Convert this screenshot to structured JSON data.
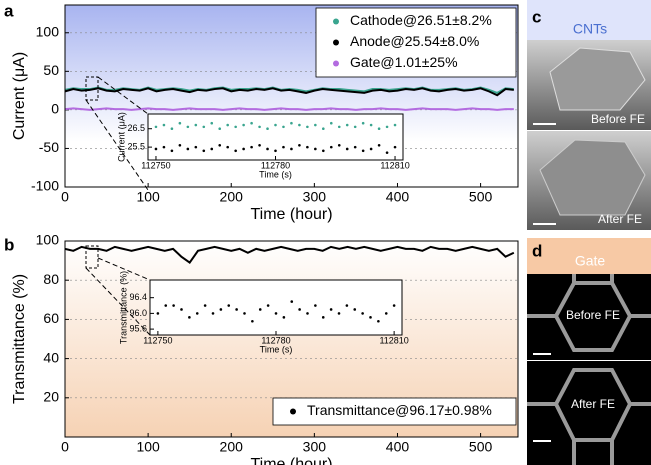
{
  "chart_data": [
    {
      "type": "line",
      "panel_label": "a",
      "x_label": "Time (hour)",
      "y_label": "Current (μA)",
      "x": [
        0,
        10,
        20,
        30,
        40,
        50,
        60,
        70,
        80,
        90,
        100,
        110,
        120,
        130,
        140,
        150,
        160,
        170,
        180,
        190,
        200,
        210,
        220,
        230,
        240,
        250,
        260,
        270,
        280,
        290,
        300,
        310,
        320,
        330,
        340,
        350,
        360,
        370,
        380,
        390,
        400,
        410,
        420,
        430,
        440,
        450,
        460,
        470,
        480,
        490,
        500,
        510,
        520,
        530,
        540
      ],
      "series": [
        {
          "name": "Cathode@26.51±8.2%",
          "color": "#3aa58f",
          "values": [
            26,
            28,
            27,
            27,
            29,
            26,
            26,
            28,
            27,
            26,
            29,
            26,
            27,
            28,
            27,
            25,
            27,
            26,
            28,
            29,
            26,
            27,
            27,
            28,
            27,
            29,
            26,
            27,
            26,
            24,
            26,
            28,
            27,
            27,
            26,
            25,
            24,
            27,
            27,
            26,
            27,
            28,
            27,
            29,
            26,
            26,
            27,
            28,
            26,
            27,
            29,
            26,
            22,
            28,
            27
          ]
        },
        {
          "name": "Anode@25.54±8.0%",
          "color": "#000000",
          "values": [
            24,
            27,
            25,
            26,
            28,
            25,
            24,
            27,
            26,
            25,
            28,
            24,
            26,
            27,
            25,
            23,
            26,
            25,
            27,
            28,
            24,
            26,
            25,
            27,
            26,
            28,
            25,
            26,
            24,
            22,
            25,
            27,
            26,
            25,
            24,
            23,
            22,
            25,
            26,
            24,
            25,
            27,
            26,
            28,
            25,
            24,
            26,
            27,
            25,
            26,
            28,
            24,
            19,
            27,
            26
          ]
        },
        {
          "name": "Gate@1.01±25%",
          "color": "#b36be0",
          "values": [
            1,
            2,
            1,
            0,
            1,
            2,
            1,
            1,
            0,
            1,
            2,
            1,
            1,
            0,
            1,
            2,
            1,
            1,
            1,
            0,
            1,
            2,
            1,
            1,
            0,
            1,
            2,
            1,
            1,
            0,
            1,
            1,
            2,
            1,
            1,
            0,
            1,
            1,
            2,
            1,
            1,
            0,
            1,
            2,
            1,
            1,
            1,
            0,
            1,
            2,
            1,
            1,
            0,
            1,
            1
          ]
        }
      ],
      "xlim": [
        0,
        545
      ],
      "ylim": [
        -100,
        136
      ],
      "xticks": [
        0,
        100,
        200,
        300,
        400,
        500
      ],
      "yticks": [
        -100,
        -50,
        0,
        50,
        100
      ],
      "grid": true,
      "legend": "upper right"
    },
    {
      "type": "scatter",
      "x_label": "Time (s)",
      "y_label": "Current (μA)",
      "x": [
        112750,
        112752,
        112754,
        112756,
        112758,
        112760,
        112762,
        112764,
        112766,
        112768,
        112770,
        112772,
        112774,
        112776,
        112778,
        112780,
        112782,
        112784,
        112786,
        112788,
        112790,
        112792,
        112794,
        112796,
        112798,
        112800,
        112802,
        112804,
        112806,
        112808,
        112810
      ],
      "series": [
        {
          "color": "#3aa58f",
          "values": [
            26.6,
            26.7,
            26.5,
            26.8,
            26.6,
            26.7,
            26.6,
            26.8,
            26.5,
            26.7,
            26.6,
            26.7,
            26.8,
            26.6,
            26.5,
            26.7,
            26.6,
            26.8,
            26.7,
            26.6,
            26.7,
            26.5,
            26.8,
            26.6,
            26.7,
            26.6,
            26.8,
            26.7,
            26.5,
            26.6,
            26.7
          ]
        },
        {
          "color": "#000000",
          "values": [
            25.4,
            25.5,
            25.3,
            25.6,
            25.4,
            25.5,
            25.3,
            25.4,
            25.6,
            25.5,
            25.3,
            25.4,
            25.5,
            25.6,
            25.4,
            25.3,
            25.5,
            25.4,
            25.6,
            25.5,
            25.4,
            25.3,
            25.5,
            25.6,
            25.4,
            25.5,
            25.3,
            25.4,
            25.6,
            25.2,
            25.5
          ]
        }
      ],
      "xlim": [
        112748,
        112812
      ],
      "ylim": [
        24.8,
        27.3
      ],
      "xticks": [
        112750,
        112780,
        112810
      ],
      "yticks": [
        25.5,
        26.5
      ]
    },
    {
      "type": "line",
      "panel_label": "b",
      "x_label": "Time (hour)",
      "y_label": "Transmittance (%)",
      "x": [
        0,
        10,
        20,
        30,
        40,
        50,
        60,
        70,
        80,
        90,
        100,
        110,
        120,
        130,
        140,
        150,
        160,
        170,
        180,
        190,
        200,
        210,
        220,
        230,
        240,
        250,
        260,
        270,
        280,
        290,
        300,
        310,
        320,
        330,
        340,
        350,
        360,
        370,
        380,
        390,
        400,
        410,
        420,
        430,
        440,
        450,
        460,
        470,
        480,
        490,
        500,
        510,
        520,
        530,
        540
      ],
      "series": [
        {
          "name": "Transmittance@96.17±0.98%",
          "color": "#000000",
          "values": [
            96,
            95,
            97,
            96,
            96,
            95,
            97,
            96,
            95,
            96,
            97,
            96,
            95,
            96,
            92,
            89,
            95,
            96,
            97,
            96,
            95,
            96,
            94,
            96,
            95,
            96,
            97,
            96,
            95,
            96,
            96,
            95,
            97,
            96,
            97,
            96,
            97,
            96,
            95,
            96,
            97,
            96,
            96,
            95,
            97,
            96,
            96,
            95,
            96,
            97,
            96,
            95,
            96,
            92,
            94
          ]
        }
      ],
      "xlim": [
        0,
        545
      ],
      "ylim": [
        0,
        100
      ],
      "xticks": [
        0,
        100,
        200,
        300,
        400,
        500
      ],
      "yticks": [
        20,
        40,
        60,
        80,
        100
      ],
      "grid": true,
      "legend": "lower right"
    },
    {
      "type": "scatter",
      "x_label": "Time (s)",
      "y_label": "Transmittance (%)",
      "x": [
        112750,
        112752,
        112754,
        112756,
        112758,
        112760,
        112762,
        112764,
        112766,
        112768,
        112770,
        112772,
        112774,
        112776,
        112778,
        112780,
        112782,
        112784,
        112786,
        112788,
        112790,
        112792,
        112794,
        112796,
        112798,
        112800,
        112802,
        112804,
        112806,
        112808,
        112810
      ],
      "series": [
        {
          "color": "#000000",
          "values": [
            96.0,
            96.2,
            96.2,
            96.1,
            95.9,
            96.0,
            96.2,
            96.0,
            96.1,
            96.2,
            96.1,
            96.0,
            95.8,
            96.1,
            96.2,
            96.0,
            95.9,
            96.3,
            96.1,
            96.0,
            96.2,
            95.9,
            96.1,
            96.0,
            96.2,
            96.1,
            96.0,
            95.9,
            95.8,
            96.0,
            96.2
          ]
        }
      ],
      "xlim": [
        112748,
        112812
      ],
      "ylim": [
        95.45,
        96.85
      ],
      "xticks": [
        112750,
        112780,
        112810
      ],
      "yticks": [
        95.6,
        {
          "value": 96,
          "label": "96.0"
        },
        96.4
      ]
    }
  ],
  "images": [
    {
      "label": "c",
      "title": "CNTs",
      "captions": [
        "Before FE",
        "After FE"
      ]
    },
    {
      "label": "d",
      "title": "Gate",
      "captions": [
        "Before FE",
        "After FE"
      ]
    }
  ]
}
